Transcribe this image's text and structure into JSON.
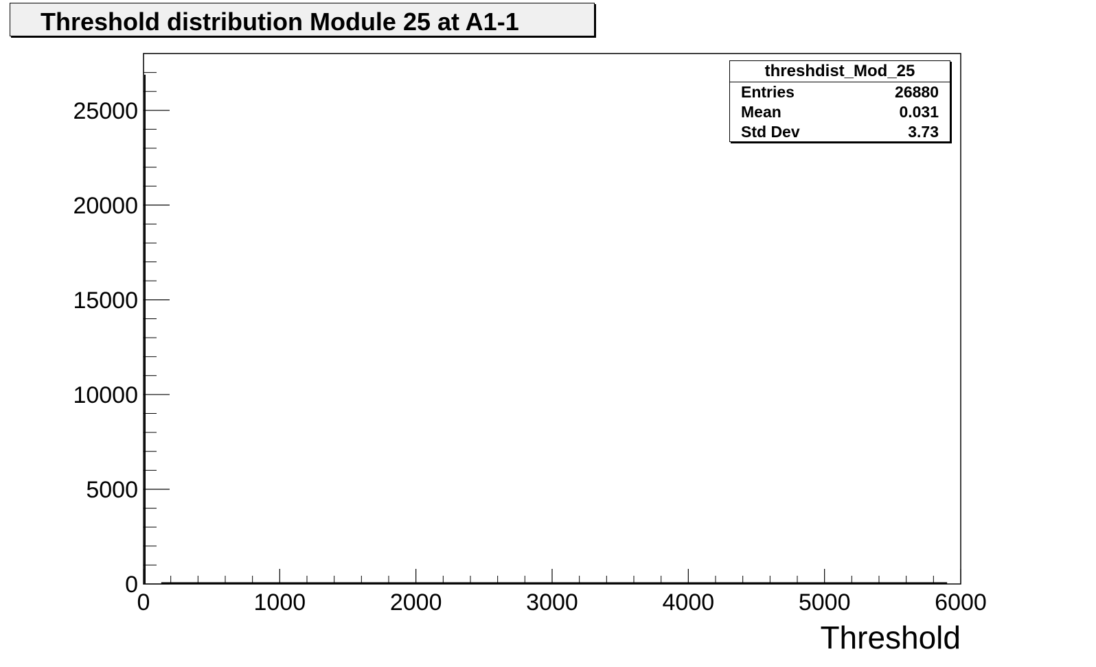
{
  "title": "Threshold distribution Module 25 at A1-1",
  "stats": {
    "name": "threshdist_Mod_25",
    "rows": [
      {
        "label": "Entries",
        "value": "26880"
      },
      {
        "label": "Mean",
        "value": "0.031"
      },
      {
        "label": "Std Dev",
        "value": "3.73"
      }
    ]
  },
  "chart_data": {
    "type": "bar",
    "title": "Threshold distribution Module 25 at A1-1",
    "xlabel": "Threshold",
    "ylabel": "",
    "xlim": [
      0,
      6000
    ],
    "ylim": [
      0,
      28000
    ],
    "x_ticks": [
      "0",
      "1000",
      "2000",
      "3000",
      "4000",
      "5000",
      "6000"
    ],
    "y_ticks": [
      "0",
      "5000",
      "10000",
      "15000",
      "20000",
      "25000"
    ],
    "bins": [
      {
        "x": 0,
        "value": 26880
      }
    ],
    "baseline": {
      "from": 130,
      "to": 5900,
      "value": 0
    },
    "grid": false,
    "legend": "top-right stats box"
  }
}
